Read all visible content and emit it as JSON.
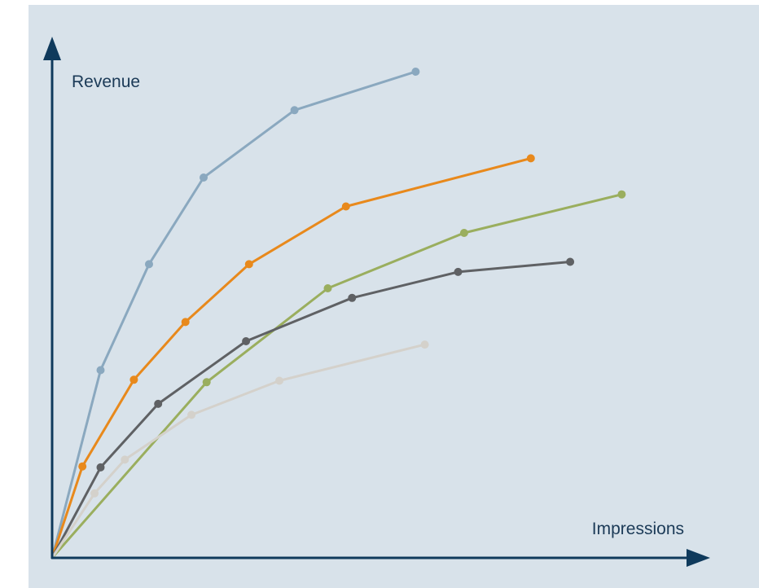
{
  "chart_data": {
    "type": "line",
    "title": "",
    "xlabel": "Impressions",
    "ylabel": "Revenue",
    "xlim": [
      0,
      100
    ],
    "ylim": [
      0,
      100
    ],
    "grid": false,
    "legend": "none",
    "series": [
      {
        "color": "#8aa8bf",
        "points": [
          [
            0,
            0
          ],
          [
            8,
            39
          ],
          [
            16,
            61
          ],
          [
            25,
            79
          ],
          [
            40,
            93
          ],
          [
            60,
            101
          ]
        ]
      },
      {
        "color": "#e8891c",
        "points": [
          [
            0,
            0
          ],
          [
            5,
            19
          ],
          [
            13.5,
            37
          ],
          [
            22,
            49
          ],
          [
            32.5,
            61
          ],
          [
            48.5,
            73
          ],
          [
            79,
            83
          ]
        ]
      },
      {
        "color": "#9aae5e",
        "points": [
          [
            0,
            0
          ],
          [
            25.5,
            36.5
          ],
          [
            45.5,
            56
          ],
          [
            68,
            67.5
          ],
          [
            94,
            75.5
          ]
        ]
      },
      {
        "color": "#5f6164",
        "points": [
          [
            0,
            0
          ],
          [
            8,
            18.8
          ],
          [
            17.5,
            32
          ],
          [
            32,
            45
          ],
          [
            49.5,
            54
          ],
          [
            67,
            59.4
          ],
          [
            85.5,
            61.5
          ]
        ]
      },
      {
        "color": "#d4d1cb",
        "points": [
          [
            0,
            0
          ],
          [
            7,
            13.4
          ],
          [
            12,
            20.4
          ],
          [
            23,
            29.7
          ],
          [
            37.5,
            36.8
          ],
          [
            61.5,
            44.3
          ]
        ]
      }
    ]
  },
  "colors": {
    "background": "#d8e2ea",
    "axis": "#0f3a5c"
  }
}
